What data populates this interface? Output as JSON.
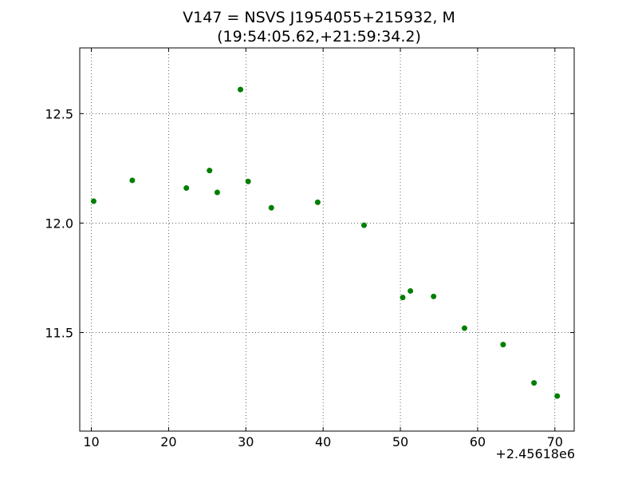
{
  "chart_data": {
    "type": "scatter",
    "title": "V147 = NSVS J1954055+215932, M",
    "subtitle": "(19:54:05.62,+21:59:34.2)",
    "xlabel": "",
    "ylabel": "",
    "x_offset_label": "+2.45618e6",
    "xlim": [
      8.5,
      72.5
    ],
    "ylim": [
      12.8,
      11.05
    ],
    "y_inverted": true,
    "x_ticks": [
      10,
      20,
      30,
      40,
      50,
      60,
      70
    ],
    "x_tick_labels": [
      "10",
      "20",
      "30",
      "40",
      "50",
      "60",
      "70"
    ],
    "y_ticks": [
      11.5,
      12.0,
      12.5
    ],
    "y_tick_labels": [
      "11.5",
      "12.0",
      "12.5"
    ],
    "grid": true,
    "marker_color": "#007f00",
    "series": [
      {
        "x": [
          10.3,
          15.3,
          22.3,
          25.3,
          26.3,
          29.3,
          30.3,
          33.3,
          39.3,
          45.3,
          50.3,
          51.3,
          54.3,
          58.3,
          63.3,
          67.3,
          70.3
        ],
        "y": [
          12.1,
          12.195,
          12.16,
          12.24,
          12.14,
          12.61,
          12.19,
          12.07,
          12.095,
          11.99,
          11.66,
          11.69,
          11.665,
          11.52,
          11.445,
          11.27,
          11.21
        ]
      }
    ]
  }
}
